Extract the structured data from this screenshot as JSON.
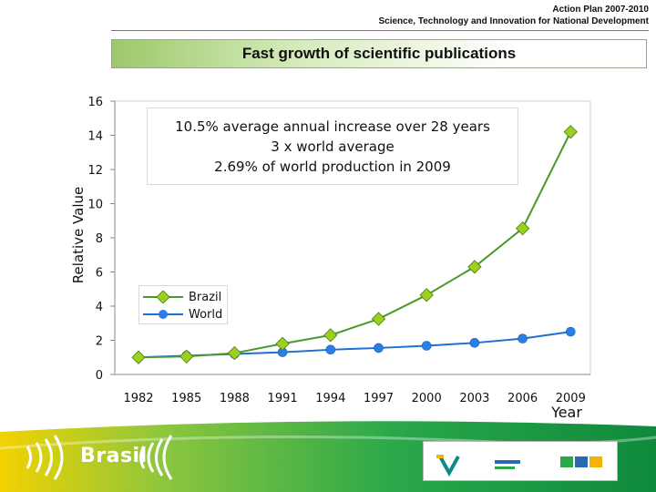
{
  "header": {
    "line1": "Action Plan 2007-2010",
    "line2": "Science, Technology and Innovation for National Development"
  },
  "slide_title": "Fast growth of scientific publications",
  "annotation": [
    "10.5% average annual increase over 28 years",
    "3 x world average",
    "2.69% of world production in 2009"
  ],
  "footer": {
    "brand": "Brasil"
  },
  "colors": {
    "brazil_line": "#4a9a2a",
    "brazil_marker": "#9ccf1e",
    "world_line": "#1f6fd1",
    "world_marker": "#2a7ee6",
    "footer_green": "#2aa84a",
    "footer_yellow": "#f2d200"
  },
  "chart_data": {
    "type": "line",
    "title": "",
    "xlabel": "Year",
    "ylabel": "Relative Value",
    "x": [
      "1982",
      "1985",
      "1988",
      "1991",
      "1994",
      "1997",
      "2000",
      "2003",
      "2006",
      "2009"
    ],
    "ylim": [
      0,
      16
    ],
    "yticks": [
      0,
      2,
      4,
      6,
      8,
      10,
      12,
      14,
      16
    ],
    "grid": false,
    "legend": "center-left",
    "series": [
      {
        "name": "Brazil",
        "values": [
          1.0,
          1.05,
          1.25,
          1.8,
          2.3,
          3.25,
          4.65,
          6.3,
          8.55,
          14.2
        ]
      },
      {
        "name": "World",
        "values": [
          1.0,
          1.1,
          1.2,
          1.3,
          1.45,
          1.55,
          1.68,
          1.85,
          2.1,
          2.5
        ]
      }
    ]
  }
}
